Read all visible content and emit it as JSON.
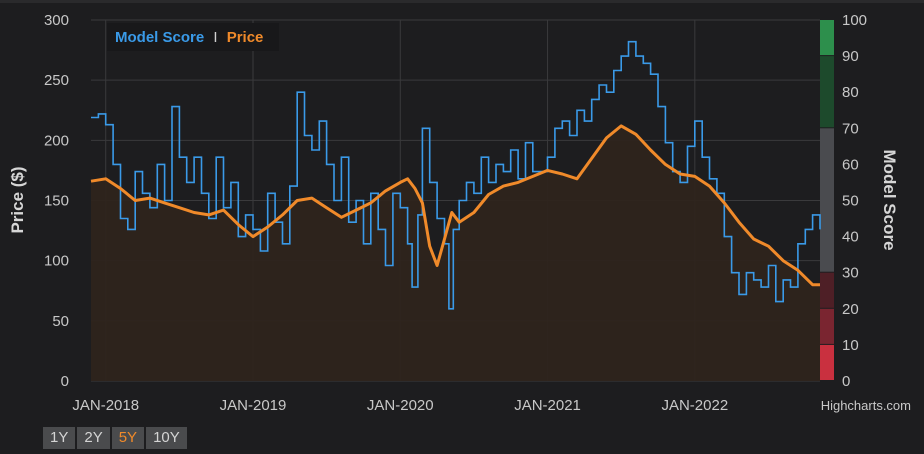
{
  "chart_data": {
    "type": "line",
    "title": "",
    "legend": {
      "position": "top-left",
      "items": [
        {
          "name": "Model Score",
          "color": "#3a9ae8"
        },
        {
          "name": "Price",
          "color": "#f08a2a"
        }
      ],
      "separator": "I"
    },
    "x_labels": [
      "JAN-2018",
      "JAN-2019",
      "JAN-2020",
      "JAN-2021",
      "JAN-2022"
    ],
    "x_range": [
      2017.9,
      2022.85
    ],
    "left_axis": {
      "title": "Price ($)",
      "min": 0,
      "max": 300,
      "ticks": [
        0,
        50,
        100,
        150,
        200,
        250,
        300
      ]
    },
    "right_axis": {
      "title": "Model Score",
      "min": 0,
      "max": 100,
      "ticks": [
        0,
        10,
        20,
        30,
        40,
        50,
        60,
        70,
        80,
        90,
        100
      ],
      "bands": [
        {
          "from": 0,
          "to": 10,
          "color": "#c9303f"
        },
        {
          "from": 10,
          "to": 20,
          "color": "#7a2530"
        },
        {
          "from": 20,
          "to": 30,
          "color": "#4e1f26"
        },
        {
          "from": 30,
          "to": 70,
          "color": "#4a4b4f"
        },
        {
          "from": 70,
          "to": 90,
          "color": "#1d4a2c"
        },
        {
          "from": 90,
          "to": 100,
          "color": "#2d8f4c"
        }
      ]
    },
    "series": [
      {
        "name": "Price",
        "axis": "left",
        "color": "#f08a2a",
        "fill": "#2e241c",
        "points": [
          [
            2017.9,
            166
          ],
          [
            2018.0,
            168
          ],
          [
            2018.1,
            160
          ],
          [
            2018.2,
            150
          ],
          [
            2018.3,
            152
          ],
          [
            2018.4,
            148
          ],
          [
            2018.5,
            144
          ],
          [
            2018.6,
            140
          ],
          [
            2018.7,
            138
          ],
          [
            2018.8,
            142
          ],
          [
            2018.9,
            130
          ],
          [
            2019.0,
            120
          ],
          [
            2019.1,
            128
          ],
          [
            2019.2,
            138
          ],
          [
            2019.3,
            150
          ],
          [
            2019.4,
            152
          ],
          [
            2019.5,
            144
          ],
          [
            2019.6,
            136
          ],
          [
            2019.7,
            142
          ],
          [
            2019.8,
            148
          ],
          [
            2019.9,
            158
          ],
          [
            2020.0,
            165
          ],
          [
            2020.05,
            168
          ],
          [
            2020.1,
            160
          ],
          [
            2020.15,
            148
          ],
          [
            2020.2,
            112
          ],
          [
            2020.25,
            96
          ],
          [
            2020.3,
            118
          ],
          [
            2020.35,
            140
          ],
          [
            2020.4,
            132
          ],
          [
            2020.5,
            140
          ],
          [
            2020.6,
            155
          ],
          [
            2020.7,
            162
          ],
          [
            2020.8,
            165
          ],
          [
            2020.9,
            170
          ],
          [
            2021.0,
            175
          ],
          [
            2021.1,
            172
          ],
          [
            2021.2,
            168
          ],
          [
            2021.3,
            185
          ],
          [
            2021.4,
            202
          ],
          [
            2021.5,
            212
          ],
          [
            2021.6,
            205
          ],
          [
            2021.7,
            192
          ],
          [
            2021.8,
            180
          ],
          [
            2021.9,
            172
          ],
          [
            2022.0,
            170
          ],
          [
            2022.1,
            162
          ],
          [
            2022.2,
            148
          ],
          [
            2022.3,
            132
          ],
          [
            2022.4,
            118
          ],
          [
            2022.5,
            112
          ],
          [
            2022.6,
            100
          ],
          [
            2022.7,
            92
          ],
          [
            2022.8,
            80
          ],
          [
            2022.85,
            80
          ]
        ]
      },
      {
        "name": "Model Score",
        "axis": "right",
        "color": "#3a9ae8",
        "points": [
          [
            2017.9,
            73
          ],
          [
            2017.95,
            74
          ],
          [
            2018.0,
            71
          ],
          [
            2018.05,
            60
          ],
          [
            2018.1,
            45
          ],
          [
            2018.15,
            42
          ],
          [
            2018.2,
            58
          ],
          [
            2018.25,
            52
          ],
          [
            2018.3,
            48
          ],
          [
            2018.35,
            60
          ],
          [
            2018.4,
            50
          ],
          [
            2018.45,
            76
          ],
          [
            2018.5,
            62
          ],
          [
            2018.55,
            55
          ],
          [
            2018.6,
            62
          ],
          [
            2018.65,
            52
          ],
          [
            2018.7,
            45
          ],
          [
            2018.75,
            62
          ],
          [
            2018.8,
            48
          ],
          [
            2018.85,
            55
          ],
          [
            2018.9,
            40
          ],
          [
            2018.95,
            46
          ],
          [
            2019.0,
            42
          ],
          [
            2019.05,
            36
          ],
          [
            2019.1,
            52
          ],
          [
            2019.15,
            44
          ],
          [
            2019.2,
            38
          ],
          [
            2019.25,
            54
          ],
          [
            2019.3,
            80
          ],
          [
            2019.35,
            68
          ],
          [
            2019.4,
            64
          ],
          [
            2019.45,
            72
          ],
          [
            2019.5,
            60
          ],
          [
            2019.55,
            50
          ],
          [
            2019.6,
            62
          ],
          [
            2019.65,
            44
          ],
          [
            2019.7,
            50
          ],
          [
            2019.75,
            38
          ],
          [
            2019.8,
            52
          ],
          [
            2019.85,
            42
          ],
          [
            2019.9,
            32
          ],
          [
            2019.95,
            52
          ],
          [
            2020.0,
            48
          ],
          [
            2020.05,
            38
          ],
          [
            2020.08,
            26
          ],
          [
            2020.12,
            46
          ],
          [
            2020.15,
            70
          ],
          [
            2020.2,
            55
          ],
          [
            2020.25,
            45
          ],
          [
            2020.3,
            38
          ],
          [
            2020.33,
            20
          ],
          [
            2020.36,
            42
          ],
          [
            2020.4,
            50
          ],
          [
            2020.45,
            55
          ],
          [
            2020.5,
            52
          ],
          [
            2020.55,
            62
          ],
          [
            2020.6,
            55
          ],
          [
            2020.65,
            60
          ],
          [
            2020.7,
            58
          ],
          [
            2020.75,
            64
          ],
          [
            2020.8,
            56
          ],
          [
            2020.85,
            66
          ],
          [
            2020.9,
            58
          ],
          [
            2021.0,
            62
          ],
          [
            2021.05,
            70
          ],
          [
            2021.1,
            72
          ],
          [
            2021.15,
            68
          ],
          [
            2021.2,
            75
          ],
          [
            2021.25,
            72
          ],
          [
            2021.3,
            78
          ],
          [
            2021.35,
            82
          ],
          [
            2021.4,
            80
          ],
          [
            2021.45,
            86
          ],
          [
            2021.5,
            90
          ],
          [
            2021.55,
            94
          ],
          [
            2021.6,
            90
          ],
          [
            2021.65,
            88
          ],
          [
            2021.7,
            85
          ],
          [
            2021.75,
            76
          ],
          [
            2021.8,
            66
          ],
          [
            2021.85,
            58
          ],
          [
            2021.9,
            55
          ],
          [
            2021.95,
            65
          ],
          [
            2022.0,
            72
          ],
          [
            2022.05,
            62
          ],
          [
            2022.1,
            56
          ],
          [
            2022.15,
            52
          ],
          [
            2022.2,
            40
          ],
          [
            2022.25,
            30
          ],
          [
            2022.3,
            24
          ],
          [
            2022.35,
            30
          ],
          [
            2022.4,
            28
          ],
          [
            2022.45,
            26
          ],
          [
            2022.5,
            32
          ],
          [
            2022.55,
            22
          ],
          [
            2022.6,
            28
          ],
          [
            2022.65,
            26
          ],
          [
            2022.7,
            38
          ],
          [
            2022.75,
            42
          ],
          [
            2022.8,
            46
          ],
          [
            2022.85,
            42
          ]
        ]
      }
    ]
  },
  "credits": "Highcharts.com",
  "range_selector": {
    "buttons": [
      "1Y",
      "2Y",
      "5Y",
      "10Y"
    ],
    "selected": "5Y"
  }
}
